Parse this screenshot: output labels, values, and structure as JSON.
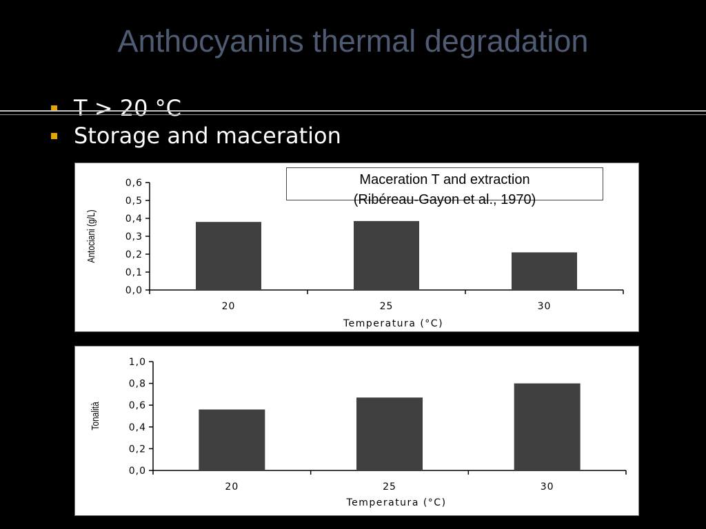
{
  "slide": {
    "title": "Anthocyanins thermal degradation",
    "bullets": [
      {
        "text": "T > 20   °C"
      },
      {
        "text": "Storage and maceration"
      }
    ],
    "caption": {
      "line1": "Maceration T and extraction",
      "line2": "(Ribéreau-Gayon et al., 1970)"
    }
  },
  "colors": {
    "background": "#000000",
    "title": "#4f5a73",
    "bullet": "#e4a400",
    "bar": "#404040"
  },
  "chart_data": [
    {
      "type": "bar",
      "categories": [
        "20",
        "25",
        "30"
      ],
      "values": [
        0.38,
        0.385,
        0.21
      ],
      "ylabel": "Antociani (g/L)",
      "xlabel": "Temperatura (°C)",
      "ylim": [
        0,
        0.6
      ],
      "yticks": [
        "0,0",
        "0,1",
        "0,2",
        "0,3",
        "0,4",
        "0,5",
        "0,6"
      ],
      "grid": false
    },
    {
      "type": "bar",
      "categories": [
        "20",
        "25",
        "30"
      ],
      "values": [
        0.56,
        0.67,
        0.8
      ],
      "ylabel": "Tonalità",
      "xlabel": "Temperatura (°C)",
      "ylim": [
        0,
        1.0
      ],
      "yticks": [
        "0,0",
        "0,2",
        "0,4",
        "0,6",
        "0,8",
        "1,0"
      ],
      "grid": false
    }
  ]
}
